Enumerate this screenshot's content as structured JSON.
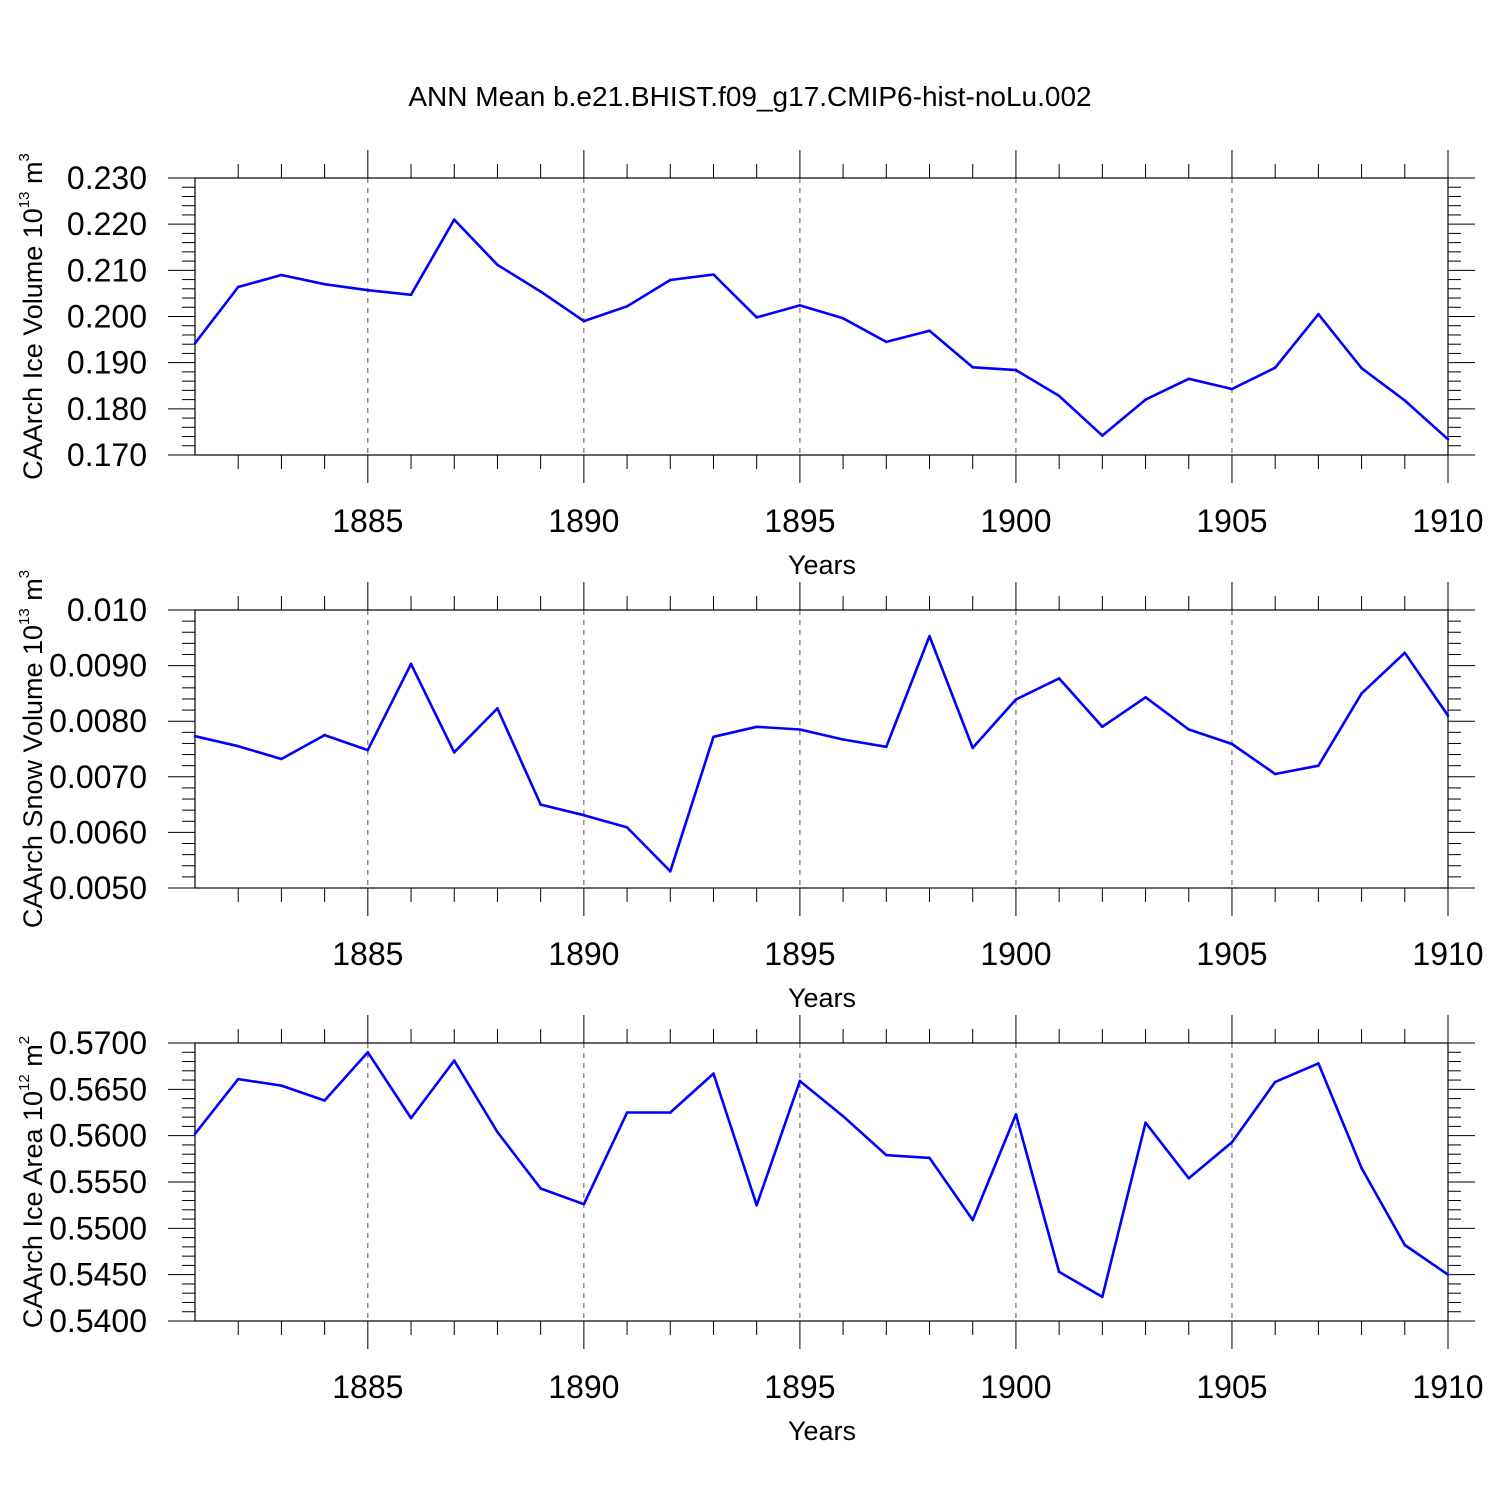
{
  "title": "ANN Mean b.e21.BHIST.f09_g17.CMIP6-hist-noLu.002",
  "colors": {
    "line": "#0000ff",
    "axis": "#000000",
    "grid": "#555555"
  },
  "chart_data": [
    {
      "type": "line",
      "ylabel": {
        "prefix": "CAArch Ice Volume 10",
        "exponent": "13",
        "unit_base": " m",
        "unit_exponent": "3"
      },
      "xlabel": "Years",
      "xlim": [
        1881,
        1910
      ],
      "ylim": [
        0.17,
        0.23
      ],
      "yticks": [
        0.17,
        0.18,
        0.19,
        0.2,
        0.21,
        0.22,
        0.23
      ],
      "ytick_labels": [
        "0.170",
        "0.180",
        "0.190",
        "0.200",
        "0.210",
        "0.220",
        "0.230"
      ],
      "yminor": 0.002,
      "xticks": [
        1885,
        1890,
        1895,
        1900,
        1905,
        1910
      ],
      "xtick_labels": [
        "1885",
        "1890",
        "1895",
        "1900",
        "1905",
        "1910"
      ],
      "x": [
        1881,
        1882,
        1883,
        1884,
        1885,
        1886,
        1887,
        1888,
        1889,
        1890,
        1891,
        1892,
        1893,
        1894,
        1895,
        1896,
        1897,
        1898,
        1899,
        1900,
        1901,
        1902,
        1903,
        1904,
        1905,
        1906,
        1907,
        1908,
        1909,
        1910
      ],
      "values": [
        0.1942,
        0.2064,
        0.209,
        0.207,
        0.2057,
        0.2047,
        0.221,
        0.2112,
        0.2054,
        0.199,
        0.2022,
        0.2079,
        0.2091,
        0.1998,
        0.2024,
        0.1996,
        0.1945,
        0.1969,
        0.189,
        0.1884,
        0.1828,
        0.1742,
        0.182,
        0.1865,
        0.1843,
        0.1889,
        0.2005,
        0.1888,
        0.1818,
        0.1734
      ]
    },
    {
      "type": "line",
      "ylabel": {
        "prefix": "CAArch Snow Volume 10",
        "exponent": "13",
        "unit_base": " m",
        "unit_exponent": "3"
      },
      "xlabel": "Years",
      "xlim": [
        1881,
        1910
      ],
      "ylim": [
        0.005,
        0.01
      ],
      "yticks": [
        0.005,
        0.006,
        0.007,
        0.008,
        0.009,
        0.01
      ],
      "ytick_labels": [
        "0.0050",
        "0.0060",
        "0.0070",
        "0.0080",
        "0.0090",
        "0.010"
      ],
      "yminor": 0.0002,
      "xticks": [
        1885,
        1890,
        1895,
        1900,
        1905,
        1910
      ],
      "xtick_labels": [
        "1885",
        "1890",
        "1895",
        "1900",
        "1905",
        "1910"
      ],
      "x": [
        1881,
        1882,
        1883,
        1884,
        1885,
        1886,
        1887,
        1888,
        1889,
        1890,
        1891,
        1892,
        1893,
        1894,
        1895,
        1896,
        1897,
        1898,
        1899,
        1900,
        1901,
        1902,
        1903,
        1904,
        1905,
        1906,
        1907,
        1908,
        1909,
        1910
      ],
      "values": [
        0.00773,
        0.00755,
        0.00732,
        0.00775,
        0.00748,
        0.00903,
        0.00744,
        0.00823,
        0.0065,
        0.00631,
        0.00609,
        0.0053,
        0.00772,
        0.0079,
        0.00785,
        0.00767,
        0.00754,
        0.00953,
        0.00752,
        0.00839,
        0.00877,
        0.0079,
        0.00843,
        0.00785,
        0.00759,
        0.00705,
        0.0072,
        0.0085,
        0.00923,
        0.0081
      ]
    },
    {
      "type": "line",
      "ylabel": {
        "prefix": "CAArch Ice Area 10",
        "exponent": "12",
        "unit_base": " m",
        "unit_exponent": "2"
      },
      "xlabel": "Years",
      "xlim": [
        1881,
        1910
      ],
      "ylim": [
        0.54,
        0.57
      ],
      "yticks": [
        0.54,
        0.545,
        0.55,
        0.555,
        0.56,
        0.565,
        0.57
      ],
      "ytick_labels": [
        "0.5400",
        "0.5450",
        "0.5500",
        "0.5550",
        "0.5600",
        "0.5650",
        "0.5700"
      ],
      "yminor": 0.001,
      "xticks": [
        1885,
        1890,
        1895,
        1900,
        1905,
        1910
      ],
      "xtick_labels": [
        "1885",
        "1890",
        "1895",
        "1900",
        "1905",
        "1910"
      ],
      "x": [
        1881,
        1882,
        1883,
        1884,
        1885,
        1886,
        1887,
        1888,
        1889,
        1890,
        1891,
        1892,
        1893,
        1894,
        1895,
        1896,
        1897,
        1898,
        1899,
        1900,
        1901,
        1902,
        1903,
        1904,
        1905,
        1906,
        1907,
        1908,
        1909,
        1910
      ],
      "values": [
        0.5602,
        0.5661,
        0.5654,
        0.5638,
        0.569,
        0.5619,
        0.5681,
        0.5604,
        0.5543,
        0.5526,
        0.5625,
        0.5625,
        0.5667,
        0.5525,
        0.5659,
        0.5621,
        0.5579,
        0.5576,
        0.5509,
        0.5623,
        0.5453,
        0.5426,
        0.5614,
        0.5554,
        0.5593,
        0.5658,
        0.5678,
        0.5565,
        0.5482,
        0.545
      ]
    }
  ]
}
